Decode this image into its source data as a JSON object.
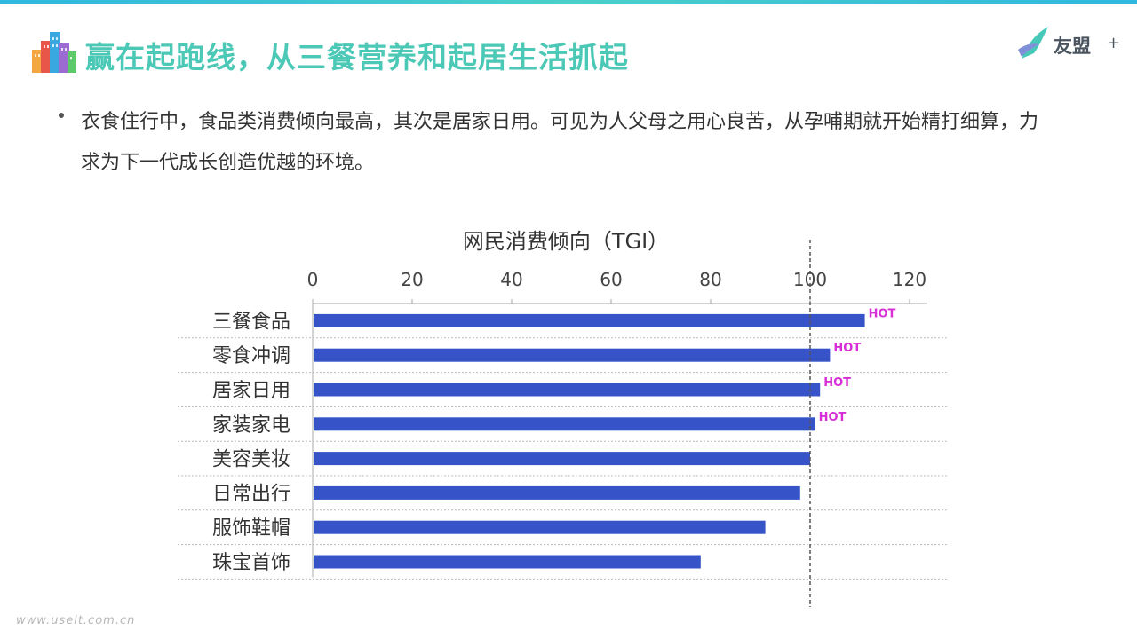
{
  "slide": {
    "title": "赢在起跑线，从三餐营养和起居生活抓起",
    "bullet": "衣食住行中，食品类消费倾向最高，其次是居家日用。可见为人父母之用心良苦，从孕哺期就开始精打细算，力求为下一代成长创造优越的环境。"
  },
  "brand": {
    "name": "友盟",
    "plus": "+"
  },
  "footer": {
    "watermark": "www.useit.com.cn"
  },
  "colors": {
    "title": "#4cc8b6",
    "bar": "#3654c8",
    "hot": "#d62fd6",
    "reference_line": "#555555",
    "gridline": "#bbbbbb"
  },
  "icons": {
    "title_icon": "city-buildings-icon",
    "brand_icon": "umeng-logo-icon"
  },
  "chart_data": {
    "type": "bar",
    "orientation": "horizontal",
    "title": "网民消费倾向（TGI）",
    "categories": [
      "三餐食品",
      "零食冲调",
      "居家日用",
      "家装家电",
      "美容美妆",
      "日常出行",
      "服饰鞋帽",
      "珠宝首饰"
    ],
    "values": [
      111,
      104,
      102,
      101,
      100,
      98,
      91,
      78
    ],
    "annotations": [
      "HOT",
      "HOT",
      "HOT",
      "HOT",
      "",
      "",
      "",
      ""
    ],
    "xlim": [
      0,
      120
    ],
    "xticks": [
      0,
      20,
      40,
      60,
      80,
      100,
      120
    ],
    "xaxis_position": "top",
    "reference_line": 100,
    "grid": "horizontal-dotted",
    "legend": "none"
  }
}
